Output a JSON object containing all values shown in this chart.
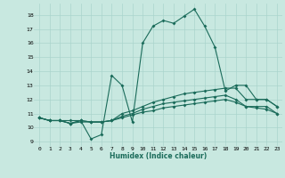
{
  "xlabel": "Humidex (Indice chaleur)",
  "bg_color": "#c8e8e0",
  "grid_color": "#aad4cc",
  "line_color": "#1a6b5a",
  "xlim": [
    -0.5,
    23.5
  ],
  "ylim": [
    8.7,
    18.8
  ],
  "xticks": [
    0,
    1,
    2,
    3,
    4,
    5,
    6,
    7,
    8,
    9,
    10,
    11,
    12,
    13,
    14,
    15,
    16,
    17,
    18,
    19,
    20,
    21,
    22,
    23
  ],
  "yticks": [
    9,
    10,
    11,
    12,
    13,
    14,
    15,
    16,
    17,
    18
  ],
  "line1_x": [
    0,
    1,
    2,
    3,
    4,
    5,
    6,
    7,
    8,
    9,
    10,
    11,
    12,
    13,
    14,
    15,
    16,
    17,
    18,
    19,
    20,
    21,
    22,
    23
  ],
  "line1_y": [
    10.7,
    10.5,
    10.5,
    10.5,
    10.5,
    9.2,
    9.5,
    13.7,
    13.0,
    10.4,
    16.0,
    17.2,
    17.6,
    17.4,
    17.9,
    18.4,
    17.2,
    15.7,
    12.6,
    13.0,
    13.0,
    12.0,
    12.0,
    11.5
  ],
  "line2_x": [
    0,
    1,
    2,
    3,
    4,
    5,
    6,
    7,
    8,
    9,
    10,
    11,
    12,
    13,
    14,
    15,
    16,
    17,
    18,
    19,
    20,
    21,
    22,
    23
  ],
  "line2_y": [
    10.7,
    10.5,
    10.5,
    10.3,
    10.5,
    10.4,
    10.4,
    10.5,
    11.0,
    11.2,
    11.5,
    11.8,
    12.0,
    12.2,
    12.4,
    12.5,
    12.6,
    12.7,
    12.8,
    12.8,
    12.0,
    12.0,
    12.0,
    11.5
  ],
  "line3_x": [
    0,
    1,
    2,
    3,
    4,
    5,
    6,
    7,
    8,
    9,
    10,
    11,
    12,
    13,
    14,
    15,
    16,
    17,
    18,
    19,
    20,
    21,
    22,
    23
  ],
  "line3_y": [
    10.7,
    10.5,
    10.5,
    10.3,
    10.5,
    10.4,
    10.4,
    10.5,
    10.8,
    11.0,
    11.3,
    11.5,
    11.7,
    11.8,
    11.9,
    12.0,
    12.1,
    12.2,
    12.3,
    12.0,
    11.5,
    11.5,
    11.5,
    11.0
  ],
  "line4_x": [
    0,
    1,
    2,
    3,
    4,
    5,
    6,
    7,
    8,
    9,
    10,
    11,
    12,
    13,
    14,
    15,
    16,
    17,
    18,
    19,
    20,
    21,
    22,
    23
  ],
  "line4_y": [
    10.7,
    10.5,
    10.5,
    10.3,
    10.4,
    10.4,
    10.4,
    10.5,
    10.7,
    10.9,
    11.1,
    11.2,
    11.4,
    11.5,
    11.6,
    11.7,
    11.8,
    11.9,
    12.0,
    11.8,
    11.5,
    11.4,
    11.3,
    11.0
  ]
}
